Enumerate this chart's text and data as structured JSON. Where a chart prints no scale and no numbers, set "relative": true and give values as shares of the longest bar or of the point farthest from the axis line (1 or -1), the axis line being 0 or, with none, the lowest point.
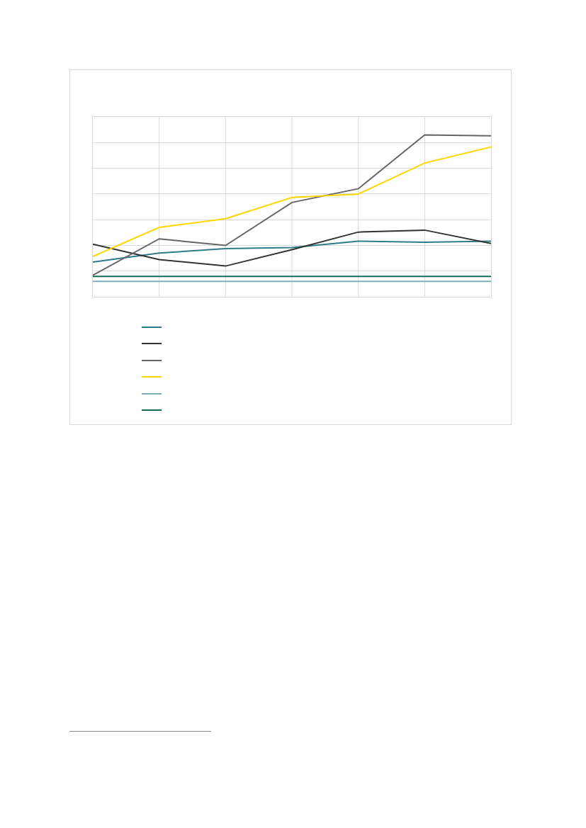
{
  "chart_data": {
    "type": "line",
    "relative": true,
    "categories": [
      null,
      null,
      null,
      null,
      null,
      null,
      null
    ],
    "grid": true,
    "series": [
      {
        "color": "#2e7b88",
        "values": [
          0.215,
          0.27,
          0.298,
          0.304,
          0.344,
          0.337,
          0.344
        ]
      },
      {
        "color": "#333333",
        "values": [
          0.325,
          0.23,
          0.19,
          0.291,
          0.4,
          0.412,
          0.329
        ]
      },
      {
        "color": "#666666",
        "values": [
          0.133,
          0.358,
          0.317,
          0.583,
          0.668,
          1,
          0.995
        ]
      },
      {
        "color": "#ffd700",
        "values": [
          0.249,
          0.429,
          0.483,
          0.614,
          0.635,
          0.827,
          0.926
        ]
      },
      {
        "color": "#7fadb9",
        "values": [
          0.095,
          0.095,
          0.095,
          0.095,
          0.095,
          0.095,
          0.095
        ]
      },
      {
        "color": "#146c54",
        "values": [
          0.126,
          0.126,
          0.126,
          0.126,
          0.126,
          0.126,
          0.126
        ]
      }
    ]
  }
}
